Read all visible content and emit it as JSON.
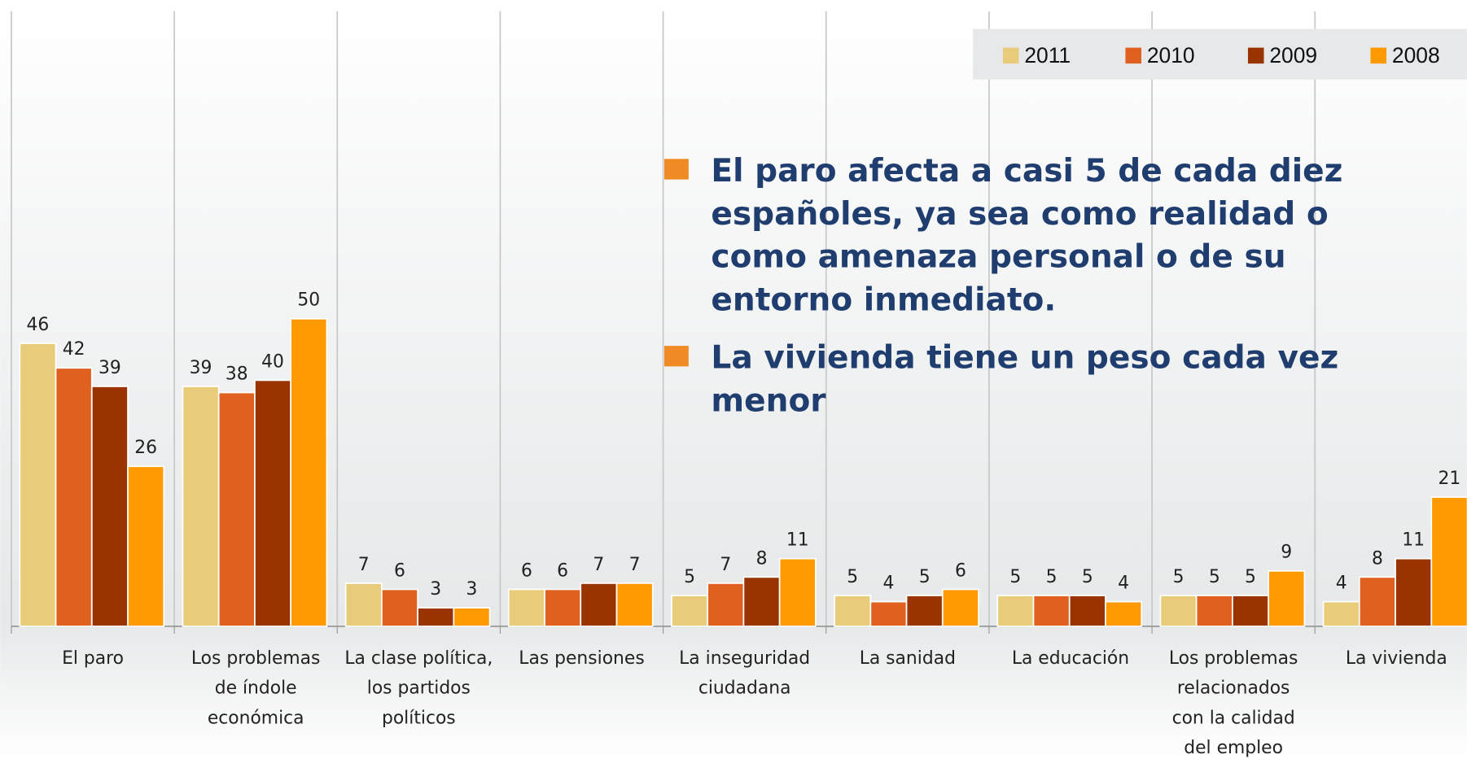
{
  "chart_data": {
    "type": "bar",
    "categories": [
      "El paro",
      "Los problemas de índole económica",
      "La clase política, los partidos políticos",
      "Las pensiones",
      "La inseguridad ciudadana",
      "La sanidad",
      "La educación",
      "Los problemas relacionados con la calidad del empleo",
      "La vivienda"
    ],
    "series": [
      {
        "name": "2011",
        "color": "#e8cc7a",
        "values": [
          46,
          39,
          7,
          6,
          5,
          5,
          5,
          5,
          4
        ]
      },
      {
        "name": "2010",
        "color": "#e06020",
        "values": [
          42,
          38,
          6,
          6,
          7,
          4,
          5,
          5,
          8
        ]
      },
      {
        "name": "2009",
        "color": "#993300",
        "values": [
          39,
          40,
          3,
          7,
          8,
          5,
          5,
          5,
          11
        ]
      },
      {
        "name": "2008",
        "color": "#ff9900",
        "values": [
          26,
          50,
          3,
          7,
          11,
          6,
          4,
          9,
          21
        ]
      }
    ],
    "ylim": [
      0,
      100
    ],
    "annotations": [
      "El paro afecta a casi 5 de cada diez españoles, ya sea como realidad o como amenaza personal o de su entorno inmediato.",
      "La vivienda tiene un peso cada vez menor"
    ],
    "legend": "top-right"
  }
}
